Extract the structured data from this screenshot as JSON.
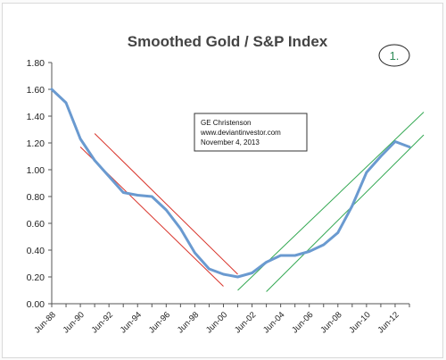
{
  "chart_data": {
    "type": "line",
    "title": "Smoothed Gold / S&P Index",
    "xlabel": "",
    "ylabel": "",
    "x_tick_labels": [
      "Jun-88",
      "Jun-90",
      "Jun-92",
      "Jun-94",
      "Jun-96",
      "Jun-98",
      "Jun-00",
      "Jun-02",
      "Jun-04",
      "Jun-06",
      "Jun-08",
      "Jun-10",
      "Jun-12"
    ],
    "xlim": [
      "Jun-88",
      "Jun-13"
    ],
    "ylim": [
      0,
      1.8
    ],
    "y_ticks": [
      "0.00",
      "0.20",
      "0.40",
      "0.60",
      "0.80",
      "1.00",
      "1.20",
      "1.40",
      "1.60",
      "1.80"
    ],
    "grid": false,
    "legend": "none",
    "series": [
      {
        "color": "#6a9ad0",
        "x": [
          "Jun-88",
          "Jun-89",
          "Jun-90",
          "Jun-91",
          "Jun-92",
          "Jun-93",
          "Jun-94",
          "Jun-95",
          "Jun-96",
          "Jun-97",
          "Jun-98",
          "Jun-99",
          "Jun-00",
          "Jun-01",
          "Jun-02",
          "Jun-03",
          "Jun-04",
          "Jun-05",
          "Jun-06",
          "Jun-07",
          "Jun-08",
          "Jun-09",
          "Jun-10",
          "Jun-11",
          "Jun-12",
          "Jun-13"
        ],
        "values": [
          1.6,
          1.5,
          1.23,
          1.07,
          0.95,
          0.83,
          0.81,
          0.8,
          0.7,
          0.56,
          0.38,
          0.26,
          0.22,
          0.2,
          0.23,
          0.31,
          0.36,
          0.36,
          0.39,
          0.44,
          0.53,
          0.73,
          0.98,
          1.1,
          1.21,
          1.17
        ]
      }
    ],
    "trendlines": [
      {
        "color": "#d9342b",
        "from": [
          "Jun-90",
          1.17
        ],
        "to": [
          "Jun-00",
          0.13
        ]
      },
      {
        "color": "#d9342b",
        "from": [
          "Jun-91",
          1.27
        ],
        "to": [
          "Jun-01",
          0.22
        ]
      },
      {
        "color": "#33a852",
        "from": [
          "Jun-01",
          0.1
        ],
        "to": [
          "Jun-14",
          1.43
        ]
      },
      {
        "color": "#33a852",
        "from": [
          "Jun-03",
          0.09
        ],
        "to": [
          "Jun-14",
          1.26
        ]
      }
    ],
    "annotation": {
      "lines": [
        "GE Christenson",
        "www.deviantinvestor.com",
        "November 4, 2013"
      ]
    },
    "badge": "1."
  }
}
